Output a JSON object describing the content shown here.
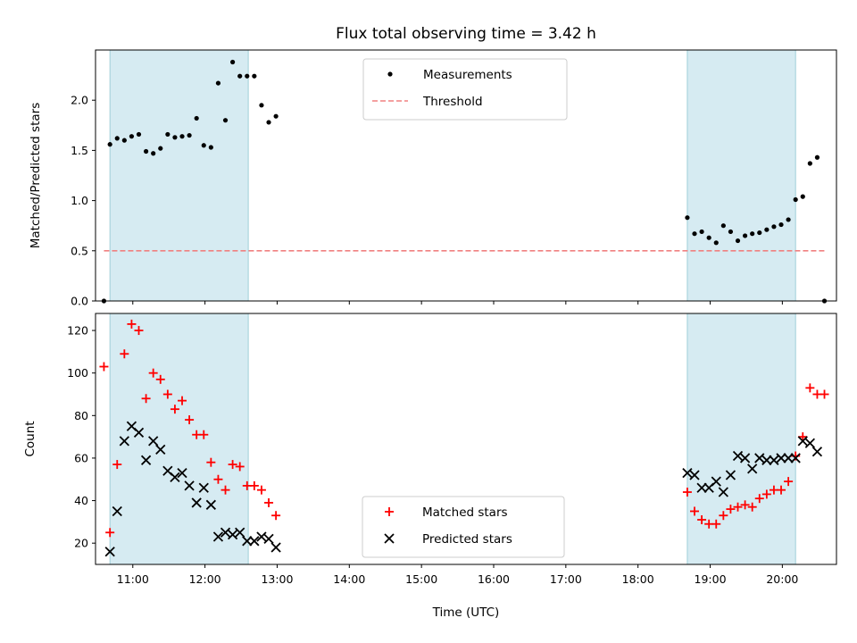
{
  "title": "Flux total observing time = 3.42 h",
  "chart_data": [
    {
      "type": "scatter",
      "ylabel": "Matched/Predicted stars",
      "ylim": [
        0,
        2.5
      ],
      "yticks": [
        "0.0",
        "0.5",
        "1.0",
        "1.5",
        "2.0"
      ],
      "xlim": [
        "10:29",
        "20:45"
      ],
      "shaded_intervals": [
        [
          "10:41",
          "12:36"
        ],
        [
          "18:41",
          "20:11"
        ]
      ],
      "threshold": 0.5,
      "legend": {
        "position": "top-center",
        "entries": [
          "Measurements",
          "Threshold"
        ]
      },
      "series": [
        {
          "name": "Measurements",
          "marker": "dot",
          "color": "#000000",
          "points": [
            [
              "10:36",
              0.0
            ],
            [
              "10:41",
              1.56
            ],
            [
              "10:47",
              1.62
            ],
            [
              "10:53",
              1.6
            ],
            [
              "10:59",
              1.64
            ],
            [
              "11:05",
              1.66
            ],
            [
              "11:11",
              1.49
            ],
            [
              "11:17",
              1.47
            ],
            [
              "11:23",
              1.52
            ],
            [
              "11:29",
              1.66
            ],
            [
              "11:35",
              1.63
            ],
            [
              "11:41",
              1.64
            ],
            [
              "11:47",
              1.65
            ],
            [
              "11:53",
              1.82
            ],
            [
              "11:59",
              1.55
            ],
            [
              "12:05",
              1.53
            ],
            [
              "12:11",
              2.17
            ],
            [
              "12:17",
              1.8
            ],
            [
              "12:23",
              2.38
            ],
            [
              "12:29",
              2.24
            ],
            [
              "12:35",
              2.24
            ],
            [
              "12:41",
              2.24
            ],
            [
              "12:47",
              1.95
            ],
            [
              "12:53",
              1.78
            ],
            [
              "12:59",
              1.84
            ],
            [
              "18:41",
              0.83
            ],
            [
              "18:47",
              0.67
            ],
            [
              "18:53",
              0.69
            ],
            [
              "18:59",
              0.63
            ],
            [
              "19:05",
              0.58
            ],
            [
              "19:11",
              0.75
            ],
            [
              "19:17",
              0.69
            ],
            [
              "19:23",
              0.6
            ],
            [
              "19:29",
              0.65
            ],
            [
              "19:35",
              0.67
            ],
            [
              "19:41",
              0.68
            ],
            [
              "19:47",
              0.71
            ],
            [
              "19:53",
              0.74
            ],
            [
              "19:59",
              0.76
            ],
            [
              "20:05",
              0.81
            ],
            [
              "20:11",
              1.01
            ],
            [
              "20:17",
              1.04
            ],
            [
              "20:23",
              1.37
            ],
            [
              "20:29",
              1.43
            ],
            [
              "20:35",
              0.0
            ]
          ]
        },
        {
          "name": "Threshold",
          "style": "dashed",
          "color": "#f08080",
          "x": [
            "10:36",
            "20:35"
          ],
          "values": [
            0.5,
            0.5
          ]
        }
      ]
    },
    {
      "type": "scatter",
      "ylabel": "Count",
      "xlabel": "Time (UTC)",
      "ylim": [
        10,
        128
      ],
      "yticks": [
        "20",
        "40",
        "60",
        "80",
        "100",
        "120"
      ],
      "xticks": [
        "11:00",
        "12:00",
        "13:00",
        "14:00",
        "15:00",
        "16:00",
        "17:00",
        "18:00",
        "19:00",
        "20:00"
      ],
      "xlim": [
        "10:29",
        "20:45"
      ],
      "shaded_intervals": [
        [
          "10:41",
          "12:36"
        ],
        [
          "18:41",
          "20:11"
        ]
      ],
      "legend": {
        "position": "bottom-center",
        "entries": [
          "Matched stars",
          "Predicted stars"
        ]
      },
      "series": [
        {
          "name": "Matched stars",
          "marker": "plus",
          "color": "#ff0000",
          "points": [
            [
              "10:36",
              103
            ],
            [
              "10:41",
              25
            ],
            [
              "10:47",
              57
            ],
            [
              "10:53",
              109
            ],
            [
              "10:59",
              123
            ],
            [
              "11:05",
              120
            ],
            [
              "11:11",
              88
            ],
            [
              "11:17",
              100
            ],
            [
              "11:23",
              97
            ],
            [
              "11:29",
              90
            ],
            [
              "11:35",
              83
            ],
            [
              "11:41",
              87
            ],
            [
              "11:47",
              78
            ],
            [
              "11:53",
              71
            ],
            [
              "11:59",
              71
            ],
            [
              "12:05",
              58
            ],
            [
              "12:11",
              50
            ],
            [
              "12:17",
              45
            ],
            [
              "12:23",
              57
            ],
            [
              "12:29",
              56
            ],
            [
              "12:35",
              47
            ],
            [
              "12:41",
              47
            ],
            [
              "12:47",
              45
            ],
            [
              "12:53",
              39
            ],
            [
              "12:59",
              33
            ],
            [
              "18:41",
              44
            ],
            [
              "18:47",
              35
            ],
            [
              "18:53",
              31
            ],
            [
              "18:59",
              29
            ],
            [
              "19:05",
              29
            ],
            [
              "19:11",
              33
            ],
            [
              "19:17",
              36
            ],
            [
              "19:23",
              37
            ],
            [
              "19:29",
              38
            ],
            [
              "19:35",
              37
            ],
            [
              "19:41",
              41
            ],
            [
              "19:47",
              43
            ],
            [
              "19:53",
              45
            ],
            [
              "19:59",
              45
            ],
            [
              "20:05",
              49
            ],
            [
              "20:11",
              61
            ],
            [
              "20:17",
              70
            ],
            [
              "20:23",
              93
            ],
            [
              "20:29",
              90
            ],
            [
              "20:35",
              90
            ]
          ]
        },
        {
          "name": "Predicted stars",
          "marker": "x",
          "color": "#000000",
          "points": [
            [
              "10:41",
              16
            ],
            [
              "10:47",
              35
            ],
            [
              "10:53",
              68
            ],
            [
              "10:59",
              75
            ],
            [
              "11:05",
              72
            ],
            [
              "11:11",
              59
            ],
            [
              "11:17",
              68
            ],
            [
              "11:23",
              64
            ],
            [
              "11:29",
              54
            ],
            [
              "11:35",
              51
            ],
            [
              "11:41",
              53
            ],
            [
              "11:47",
              47
            ],
            [
              "11:53",
              39
            ],
            [
              "11:59",
              46
            ],
            [
              "12:05",
              38
            ],
            [
              "12:11",
              23
            ],
            [
              "12:17",
              25
            ],
            [
              "12:23",
              24
            ],
            [
              "12:29",
              25
            ],
            [
              "12:35",
              21
            ],
            [
              "12:41",
              21
            ],
            [
              "12:47",
              23
            ],
            [
              "12:53",
              22
            ],
            [
              "12:59",
              18
            ],
            [
              "18:41",
              53
            ],
            [
              "18:47",
              52
            ],
            [
              "18:53",
              46
            ],
            [
              "18:59",
              46
            ],
            [
              "19:05",
              49
            ],
            [
              "19:11",
              44
            ],
            [
              "19:17",
              52
            ],
            [
              "19:23",
              61
            ],
            [
              "19:29",
              60
            ],
            [
              "19:35",
              55
            ],
            [
              "19:41",
              60
            ],
            [
              "19:47",
              59
            ],
            [
              "19:53",
              59
            ],
            [
              "19:59",
              60
            ],
            [
              "20:05",
              60
            ],
            [
              "20:11",
              60
            ],
            [
              "20:17",
              68
            ],
            [
              "20:23",
              67
            ],
            [
              "20:29",
              63
            ]
          ]
        }
      ]
    }
  ]
}
